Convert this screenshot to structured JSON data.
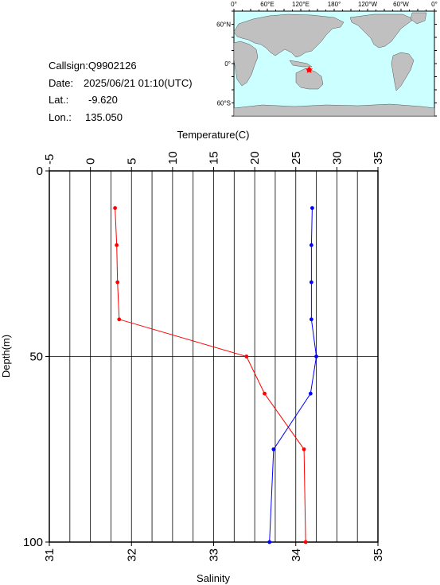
{
  "info": {
    "callsign": "Callsign:Q9902126",
    "date_label": "Date:",
    "date_value": "2025/06/21 01:10(UTC)",
    "lat_label": "Lat.:",
    "lat_value": "-9.620",
    "lon_label": "Lon.:",
    "lon_value": "135.050"
  },
  "map": {
    "top_labels": [
      "0°",
      "60°E",
      "120°E",
      "180°",
      "120°W",
      "60°W",
      "0°"
    ],
    "left_labels": [
      "60°N",
      "0°",
      "60°S"
    ],
    "ocean_color": "#ccffff",
    "land_color": "#c0c0c0",
    "marker_color": "#ff0000",
    "marker_lon": 135.05,
    "marker_lat": -9.62
  },
  "chart_data": {
    "type": "line",
    "x_top_label": "Temperature(C)",
    "x_bottom_label": "Salinity",
    "y_label": "Depth(m)",
    "temperature_ticks": [
      "-5",
      "0",
      "5",
      "10",
      "15",
      "20",
      "25",
      "30",
      "35"
    ],
    "salinity_ticks": [
      "31",
      "32",
      "33",
      "34",
      "35"
    ],
    "depth_ticks": [
      "0",
      "50",
      "100"
    ],
    "temperature_range": [
      -5,
      35
    ],
    "salinity_range": [
      31,
      35
    ],
    "depth_range": [
      0,
      100
    ],
    "grid": true,
    "series": [
      {
        "color": "#ff0000",
        "axis": "temperature",
        "depth": [
          10,
          20,
          30,
          40,
          50,
          60,
          75,
          100
        ],
        "values": [
          3.0,
          3.2,
          3.3,
          3.5,
          19.0,
          21.2,
          26.0,
          26.2
        ]
      },
      {
        "color": "#0000ff",
        "axis": "salinity",
        "depth": [
          10,
          20,
          30,
          40,
          50,
          60,
          75,
          100
        ],
        "values": [
          34.2,
          34.19,
          34.19,
          34.19,
          34.25,
          34.18,
          33.73,
          33.68
        ]
      }
    ]
  }
}
